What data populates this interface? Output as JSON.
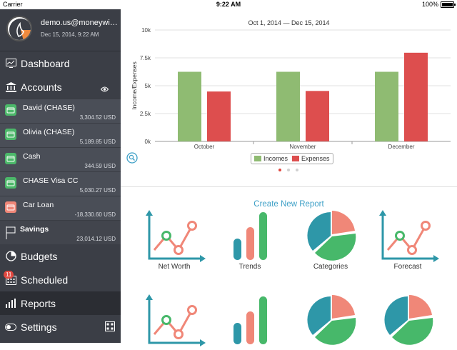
{
  "status_bar": {
    "carrier": "Carrier",
    "time": "9:22 AM",
    "battery": "100%"
  },
  "profile": {
    "email": "demo.us@moneywiz...",
    "date": "Dec 15, 2014, 9:22 AM"
  },
  "nav": {
    "dashboard": "Dashboard",
    "accounts": "Accounts",
    "budgets": "Budgets",
    "scheduled": "Scheduled",
    "scheduled_badge": "11",
    "reports": "Reports",
    "settings": "Settings"
  },
  "accounts": [
    {
      "name": "David (CHASE)",
      "amount": "3,304.52 USD",
      "color": "#4cb86a"
    },
    {
      "name": "Olivia (CHASE)",
      "amount": "5,189.85 USD",
      "color": "#4cb86a"
    },
    {
      "name": "Cash",
      "amount": "344.59 USD",
      "color": "#4cb86a"
    },
    {
      "name": "CHASE Visa CC",
      "amount": "5,030.27 USD",
      "color": "#4cb86a"
    },
    {
      "name": "Car Loan",
      "amount": "-18,330.60 USD",
      "color": "#f08778"
    }
  ],
  "savings": {
    "name": "Savings",
    "amount": "23,014.12 USD"
  },
  "chart_data": {
    "type": "bar",
    "title": "Oct 1, 2014 — Dec 15, 2014",
    "ylabel": "Income/Expenses",
    "categories": [
      "October",
      "November",
      "December"
    ],
    "yticks": [
      "0k",
      "2.5k",
      "5k",
      "7.5k",
      "10k"
    ],
    "ylim": [
      0,
      10000
    ],
    "series": [
      {
        "name": "Incomes",
        "color": "#8fbb72",
        "values": [
          6250,
          6250,
          6250
        ]
      },
      {
        "name": "Expenses",
        "color": "#dd4e4e",
        "values": [
          4480,
          4530,
          7960
        ]
      }
    ]
  },
  "create_report": "Create New Report",
  "reports": [
    {
      "label": "Net Worth",
      "icon": "line-chart-icon"
    },
    {
      "label": "Trends",
      "icon": "bar-chart-icon"
    },
    {
      "label": "Categories",
      "icon": "pie-chart-icon"
    },
    {
      "label": "Forecast",
      "icon": "line-chart-icon"
    },
    {
      "label": "",
      "icon": "line-chart-icon"
    },
    {
      "label": "",
      "icon": "bar-chart-icon"
    },
    {
      "label": "",
      "icon": "pie-chart-icon"
    },
    {
      "label": "",
      "icon": "pie-chart-icon"
    }
  ],
  "colors": {
    "teal": "#2e97a8",
    "salmon": "#f08778",
    "green": "#47b86a",
    "accent": "#3c9fc6"
  }
}
